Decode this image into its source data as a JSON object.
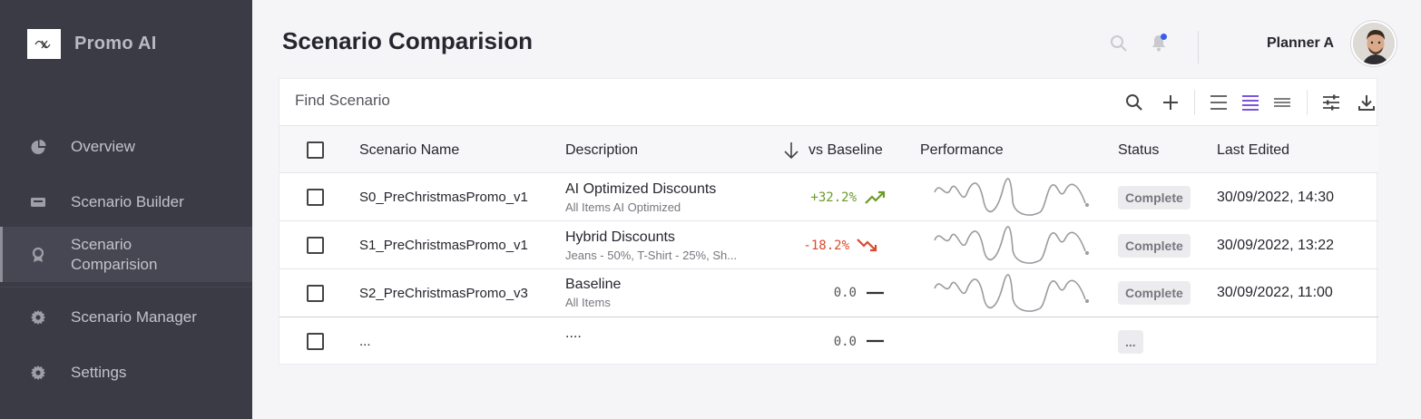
{
  "app": {
    "name": "Promo AI"
  },
  "sidebar": {
    "items": [
      {
        "label": "Overview",
        "icon": "pie-chart-icon"
      },
      {
        "label": "Scenario Builder",
        "icon": "builder-icon"
      },
      {
        "label": "Scenario\nComparision",
        "icon": "compare-icon",
        "active": true
      },
      {
        "label": "Scenario Manager",
        "icon": "gear-icon"
      },
      {
        "label": "Settings",
        "icon": "gear-icon"
      }
    ]
  },
  "header": {
    "title": "Scenario Comparision",
    "user": "Planner A"
  },
  "toolbar": {
    "search_placeholder": "Find Scenario",
    "icons": [
      "search-icon",
      "add-icon",
      "density-comfortable-icon",
      "density-standard-icon",
      "density-compact-icon",
      "filter-settings-icon",
      "download-icon"
    ],
    "active_density": "standard"
  },
  "table": {
    "columns": [
      "Scenario Name",
      "Description",
      "vs Baseline",
      "Performance",
      "Status",
      "Last Edited"
    ],
    "sort": {
      "column": "vs Baseline",
      "direction": "descending"
    },
    "rows": [
      {
        "name": "S0_PreChristmasPromo_v1",
        "desc": "AI Optimized Discounts",
        "desc_sub": "All Items AI Optimized",
        "vs": "+32.2%",
        "trend": "up",
        "status": "Complete",
        "edited": "30/09/2022, 14:30",
        "spark": true
      },
      {
        "name": "S1_PreChristmasPromo_v1",
        "desc": "Hybrid Discounts",
        "desc_sub": "Jeans - 50%, T-Shirt - 25%, Sh...",
        "vs": "-18.2%",
        "trend": "down",
        "status": "Complete",
        "edited": "30/09/2022, 13:22",
        "spark": true
      },
      {
        "name": "S2_PreChristmasPromo_v3",
        "desc": "Baseline",
        "desc_sub": "All Items",
        "vs": "0.0",
        "trend": "flat",
        "status": "Complete",
        "edited": "30/09/2022, 11:00",
        "spark": true
      },
      {
        "name": "...",
        "desc": "....",
        "desc_sub": "",
        "vs": "0.0",
        "trend": "flat",
        "status": "...",
        "edited": "",
        "spark": false
      }
    ]
  },
  "colors": {
    "sidebar": "#3a3b45",
    "positive": "#6b9a2a",
    "negative": "#d84a2e",
    "accent": "#6a3fd4",
    "notification": "#3a5cf0"
  }
}
